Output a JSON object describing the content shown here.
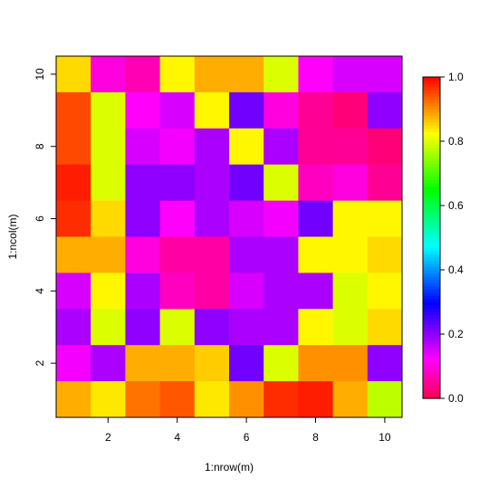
{
  "chart_data": {
    "type": "heatmap",
    "xlabel": "1:nrow(m)",
    "ylabel": "1:ncol(m)",
    "x": [
      1,
      2,
      3,
      4,
      5,
      6,
      7,
      8,
      9,
      10
    ],
    "y": [
      1,
      2,
      3,
      4,
      5,
      6,
      7,
      8,
      9,
      10
    ],
    "xlim": [
      0.5,
      10.5
    ],
    "ylim": [
      0.5,
      10.5
    ],
    "x_ticks": [
      2,
      4,
      6,
      8,
      10
    ],
    "y_ticks": [
      2,
      4,
      6,
      8,
      10
    ],
    "colorbar": {
      "range": [
        0,
        1
      ],
      "ticks": [
        "0.0",
        "0.2",
        "0.4",
        "0.6",
        "0.8",
        "1.0"
      ],
      "tick_values": [
        0.0,
        0.2,
        0.4,
        0.6,
        0.8,
        1.0
      ],
      "palette": "rainbow(end=0.95, reversed): red-orange-yellow-green-cyan-blue-magenta-red"
    },
    "values_by_row_top_to_bottom": [
      [
        0.85,
        0.1,
        0.07,
        0.83,
        0.88,
        0.88,
        0.8,
        0.12,
        0.15,
        0.15
      ],
      [
        0.95,
        0.8,
        0.12,
        0.15,
        0.83,
        0.22,
        0.1,
        0.05,
        0.03,
        0.2
      ],
      [
        0.95,
        0.8,
        0.15,
        0.13,
        0.18,
        0.83,
        0.18,
        0.05,
        0.05,
        0.03
      ],
      [
        0.98,
        0.8,
        0.2,
        0.2,
        0.18,
        0.22,
        0.8,
        0.08,
        0.1,
        0.05
      ],
      [
        0.97,
        0.85,
        0.2,
        0.12,
        0.18,
        0.15,
        0.13,
        0.22,
        0.83,
        0.83
      ],
      [
        0.88,
        0.88,
        0.1,
        0.06,
        0.06,
        0.18,
        0.18,
        0.83,
        0.83,
        0.85
      ],
      [
        0.15,
        0.83,
        0.18,
        0.08,
        0.06,
        0.15,
        0.18,
        0.18,
        0.8,
        0.83
      ],
      [
        0.18,
        0.8,
        0.2,
        0.8,
        0.2,
        0.18,
        0.18,
        0.83,
        0.8,
        0.85
      ],
      [
        0.13,
        0.18,
        0.88,
        0.88,
        0.86,
        0.22,
        0.8,
        0.9,
        0.9,
        0.2
      ],
      [
        0.88,
        0.84,
        0.92,
        0.94,
        0.84,
        0.9,
        0.97,
        0.98,
        0.88,
        0.78
      ]
    ]
  }
}
